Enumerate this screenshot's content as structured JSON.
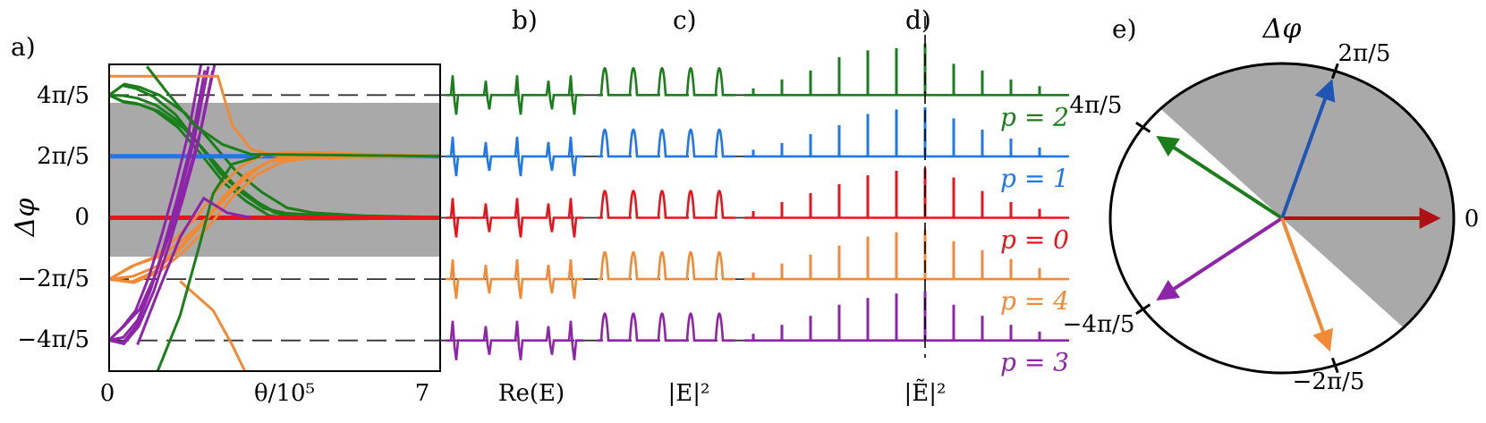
{
  "panels": {
    "a": "a)",
    "b": "b)",
    "c": "c)",
    "d": "d)",
    "e": "e)"
  },
  "colors": {
    "p2": "#1a7f1a",
    "p1": "#1f77e8",
    "p0": "#e8141b",
    "p4": "#f28a35",
    "p3": "#8e24aa",
    "dial_p1": "#1f55b4",
    "dial_p0": "#b00f14",
    "band": "#a9a9a9"
  },
  "panel_a": {
    "ylabel": "Δφ",
    "xlabel": "θ/10⁵",
    "xticks": [
      "0",
      "7"
    ],
    "yticks": [
      "4π/5",
      "2π/5",
      "0",
      "−2π/5",
      "−4π/5"
    ]
  },
  "panel_b": {
    "xlabel": "Re(E)"
  },
  "panel_c": {
    "xlabel": "|E|²"
  },
  "panel_d": {
    "xlabel": "|Ẽ|²"
  },
  "rows": [
    {
      "key": "p2",
      "label": "p = 2"
    },
    {
      "key": "p1",
      "label": "p = 1"
    },
    {
      "key": "p0",
      "label": "p = 0"
    },
    {
      "key": "p4",
      "label": "p = 4"
    },
    {
      "key": "p3",
      "label": "p = 3"
    }
  ],
  "panel_e": {
    "title": "Δφ",
    "labels": [
      "2π/5",
      "4π/5",
      "0",
      "−4π/5",
      "−2π/5"
    ]
  },
  "chart_data": [
    {
      "type": "line",
      "panel": "a",
      "xlabel": "θ/10⁵",
      "ylabel": "Δφ",
      "xlim": [
        0,
        7
      ],
      "ylim": [
        -3.14159,
        3.14159
      ],
      "reference_lines_y": [
        2.5133,
        1.2566,
        0,
        -1.2566,
        -2.5133
      ],
      "shaded_band_y": [
        -0.79,
        2.35
      ],
      "series": [
        {
          "name": "p = 2",
          "x": [
            0,
            0.3,
            0.6,
            1.0,
            1.5,
            2.0,
            2.5,
            3.0,
            3.5,
            4.0,
            5.0,
            7.0
          ],
          "y": [
            2.51,
            2.5,
            2.45,
            2.3,
            1.95,
            1.4,
            0.8,
            0.4,
            0.1,
            0.02,
            0.0,
            0.0
          ]
        },
        {
          "name": "p = 1",
          "x": [
            0,
            1,
            2,
            3,
            4,
            5,
            6,
            7
          ],
          "y": [
            1.26,
            1.26,
            1.26,
            1.26,
            1.26,
            1.26,
            1.26,
            1.26
          ]
        },
        {
          "name": "p = 0",
          "x": [
            0,
            1,
            2,
            3,
            4,
            5,
            6,
            7
          ],
          "y": [
            0,
            0,
            0,
            0,
            0,
            0,
            0,
            0
          ]
        },
        {
          "name": "p = 4",
          "x": [
            0,
            0.5,
            1.0,
            1.5,
            2.0,
            2.5,
            3.0,
            3.5,
            4.0,
            5.0,
            7.0
          ],
          "y": [
            -1.26,
            -1.2,
            -1.0,
            -0.6,
            -0.1,
            0.5,
            0.95,
            1.2,
            1.26,
            1.26,
            1.26
          ]
        },
        {
          "name": "p = 3",
          "x": [
            0,
            0.3,
            0.6,
            0.9,
            1.2,
            1.5,
            1.8,
            2.1
          ],
          "y": [
            -2.51,
            -2.45,
            -2.1,
            -1.4,
            -0.5,
            0.5,
            1.6,
            3.1
          ]
        }
      ]
    },
    {
      "type": "dial",
      "panel": "e",
      "title": "Δφ",
      "arrows_deg": [
        {
          "name": "p = 0",
          "angle": 0
        },
        {
          "name": "p = 1",
          "angle": 72
        },
        {
          "name": "p = 2",
          "angle": 144
        },
        {
          "name": "p = 3",
          "angle": 216
        },
        {
          "name": "p = 4",
          "angle": 288
        }
      ],
      "shaded_sector_deg": [
        -45,
        135
      ]
    }
  ]
}
